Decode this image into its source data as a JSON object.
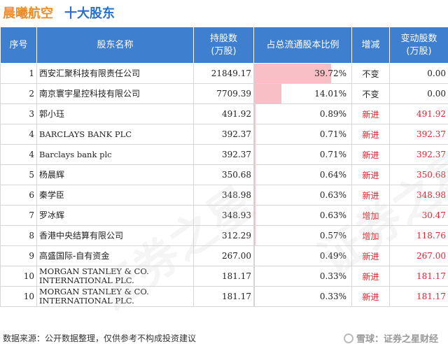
{
  "header": {
    "company": "晨曦航空",
    "subtitle": "十大股东"
  },
  "table": {
    "columns": [
      "序号",
      "股东名称",
      "持股数\n(万股)",
      "占总流通股本比例",
      "增减",
      "变动股数\n(万股)"
    ],
    "rows": [
      {
        "rank": "1",
        "name": "西安汇聚科技有限责任公司",
        "shares": "21849.17",
        "ratio": "39.72%",
        "ratio_value": 39.72,
        "change": "不变",
        "delta": "0.00",
        "highlight": false
      },
      {
        "rank": "2",
        "name": "南京寰宇星控科技有限公司",
        "shares": "7709.39",
        "ratio": "14.01%",
        "ratio_value": 14.01,
        "change": "不变",
        "delta": "0.00",
        "highlight": false
      },
      {
        "rank": "3",
        "name": "郭小珏",
        "shares": "491.92",
        "ratio": "0.89%",
        "ratio_value": 0.89,
        "change": "新进",
        "delta": "491.92",
        "highlight": true
      },
      {
        "rank": "4",
        "name": "BARCLAYS BANK PLC",
        "shares": "392.37",
        "ratio": "0.71%",
        "ratio_value": 0.71,
        "change": "新进",
        "delta": "392.37",
        "highlight": true
      },
      {
        "rank": "4",
        "name": "Barclays bank plc",
        "shares": "392.37",
        "ratio": "0.71%",
        "ratio_value": 0.71,
        "change": "新进",
        "delta": "392.37",
        "highlight": true
      },
      {
        "rank": "5",
        "name": "杨晨辉",
        "shares": "350.68",
        "ratio": "0.64%",
        "ratio_value": 0.64,
        "change": "新进",
        "delta": "350.68",
        "highlight": true
      },
      {
        "rank": "6",
        "name": "秦学臣",
        "shares": "348.98",
        "ratio": "0.63%",
        "ratio_value": 0.63,
        "change": "新进",
        "delta": "348.98",
        "highlight": true
      },
      {
        "rank": "7",
        "name": "罗冰辉",
        "shares": "348.93",
        "ratio": "0.63%",
        "ratio_value": 0.63,
        "change": "增加",
        "delta": "30.47",
        "highlight": true
      },
      {
        "rank": "8",
        "name": "香港中央结算有限公司",
        "shares": "312.29",
        "ratio": "0.57%",
        "ratio_value": 0.57,
        "change": "增加",
        "delta": "118.76",
        "highlight": true
      },
      {
        "rank": "9",
        "name": "高盛国际-自有资金",
        "shares": "267.00",
        "ratio": "0.49%",
        "ratio_value": 0.49,
        "change": "新进",
        "delta": "267.00",
        "highlight": true
      },
      {
        "rank": "10",
        "name": "MORGAN STANLEY & CO. INTERNATIONAL PLC.",
        "shares": "181.17",
        "ratio": "0.33%",
        "ratio_value": 0.33,
        "change": "新进",
        "delta": "181.17",
        "highlight": true
      },
      {
        "rank": "10",
        "name": "MORGAN STANLEY & CO. INTERNATIONAL PLC.",
        "shares": "181.17",
        "ratio": "0.33%",
        "ratio_value": 0.33,
        "change": "新进",
        "delta": "181.17",
        "highlight": true
      }
    ]
  },
  "footer": {
    "source": "数据来源：公开数据整理，仅供参考不构成投资建议",
    "brand": "雪球：证券之星财经"
  },
  "watermark": {
    "text": "证券之星"
  },
  "colors": {
    "header_bg": "#3f7fd0",
    "accent_orange": "#f08c28",
    "accent_blue": "#2a6fc9",
    "bar": "#f8c0c6",
    "red": "#e0242f"
  }
}
